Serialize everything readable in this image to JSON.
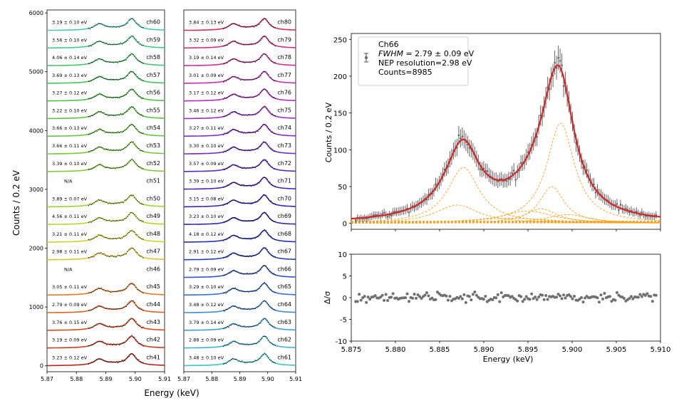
{
  "chart_data": [
    {
      "type": "line",
      "panel": "ch41-ch60 stacked spectra",
      "xlabel": "Energy  (keV)",
      "ylabel": "Counts / 0.2 eV",
      "xlim": [
        5.87,
        5.91
      ],
      "ylim": [
        -100,
        6050
      ],
      "xticks": [
        "5.87",
        "5.88",
        "5.89",
        "5.90",
        "5.91"
      ],
      "yticks": [
        0,
        1000,
        2000,
        3000,
        4000,
        5000,
        6000
      ],
      "channels": [
        {
          "name": "ch41",
          "offset": 0,
          "fwhm": "3.23 ± 0.12 eV",
          "color": "#b22a1a"
        },
        {
          "name": "ch42",
          "offset": 300,
          "fwhm": "3.19 ± 0.09 eV",
          "color": "#c73d1c"
        },
        {
          "name": "ch43",
          "offset": 600,
          "fwhm": "3.76 ± 0.15 eV",
          "color": "#d34f1f"
        },
        {
          "name": "ch44",
          "offset": 900,
          "fwhm": "2.79 ± 0.09 eV",
          "color": "#dd6322"
        },
        {
          "name": "ch45",
          "offset": 1200,
          "fwhm": "3.05 ± 0.11 eV",
          "color": "#e87a27"
        },
        {
          "name": "ch46",
          "offset": 1500,
          "fwhm": "N/A",
          "color": "#e89a2d"
        },
        {
          "name": "ch47",
          "offset": 1800,
          "fwhm": "2.98 ± 0.11 eV",
          "color": "#d8c72e"
        },
        {
          "name": "ch48",
          "offset": 2100,
          "fwhm": "3.21 ± 0.11 eV",
          "color": "#c8d42c"
        },
        {
          "name": "ch49",
          "offset": 2400,
          "fwhm": "4.56 ± 0.11 eV",
          "color": "#b4d62c"
        },
        {
          "name": "ch50",
          "offset": 2700,
          "fwhm": "3.89 ± 0.07 eV",
          "color": "#9dd42e"
        },
        {
          "name": "ch51",
          "offset": 3000,
          "fwhm": "N/A",
          "color": "#8fd133"
        },
        {
          "name": "ch52",
          "offset": 3300,
          "fwhm": "3.39 ± 0.10 eV",
          "color": "#80cc36"
        },
        {
          "name": "ch53",
          "offset": 3600,
          "fwhm": "3.66 ± 0.11 eV",
          "color": "#73c93a"
        },
        {
          "name": "ch54",
          "offset": 3900,
          "fwhm": "3.66 ± 0.13 eV",
          "color": "#66c63f"
        },
        {
          "name": "ch55",
          "offset": 4200,
          "fwhm": "3.22 ± 0.10 eV",
          "color": "#5bc442"
        },
        {
          "name": "ch56",
          "offset": 4500,
          "fwhm": "3.27 ± 0.12 eV",
          "color": "#50c247"
        },
        {
          "name": "ch57",
          "offset": 4800,
          "fwhm": "3.69 ± 0.13 eV",
          "color": "#49c35a"
        },
        {
          "name": "ch58",
          "offset": 5100,
          "fwhm": "4.06 ± 0.14 eV",
          "color": "#48c470"
        },
        {
          "name": "ch59",
          "offset": 5400,
          "fwhm": "3.56 ± 0.10 eV",
          "color": "#48c78a"
        },
        {
          "name": "ch60",
          "offset": 5700,
          "fwhm": "3.19 ± 0.10 eV",
          "color": "#4ccaa8"
        }
      ]
    },
    {
      "type": "line",
      "panel": "ch61-ch80 stacked spectra",
      "xlabel": "Energy  (keV)",
      "xlim": [
        5.87,
        5.91
      ],
      "ylim": [
        -100,
        6050
      ],
      "xticks": [
        "5.87",
        "5.88",
        "5.89",
        "5.90",
        "5.91"
      ],
      "channels": [
        {
          "name": "ch61",
          "offset": 0,
          "fwhm": "3.48 ± 0.10 eV",
          "color": "#3cc3c8"
        },
        {
          "name": "ch62",
          "offset": 300,
          "fwhm": "2.88 ± 0.09 eV",
          "color": "#3eb3d4"
        },
        {
          "name": "ch63",
          "offset": 600,
          "fwhm": "3.79 ± 0.14 eV",
          "color": "#3fa0d8"
        },
        {
          "name": "ch64",
          "offset": 900,
          "fwhm": "3.48 ± 0.12 eV",
          "color": "#3d8ad8"
        },
        {
          "name": "ch65",
          "offset": 1200,
          "fwhm": "3.29 ± 0.10 eV",
          "color": "#3770d2"
        },
        {
          "name": "ch66",
          "offset": 1500,
          "fwhm": "2.79 ± 0.09 eV",
          "color": "#2f55c7"
        },
        {
          "name": "ch67",
          "offset": 1800,
          "fwhm": "2.91 ± 0.12 eV",
          "color": "#2840c0"
        },
        {
          "name": "ch68",
          "offset": 2100,
          "fwhm": "4.18 ± 0.12 eV",
          "color": "#2530b8"
        },
        {
          "name": "ch69",
          "offset": 2400,
          "fwhm": "3.23 ± 0.10 eV",
          "color": "#2c28b4"
        },
        {
          "name": "ch70",
          "offset": 2700,
          "fwhm": "3.15 ± 0.08 eV",
          "color": "#3a26b8"
        },
        {
          "name": "ch71",
          "offset": 3000,
          "fwhm": "3.39 ± 0.10 eV",
          "color": "#4a26bd"
        },
        {
          "name": "ch72",
          "offset": 3300,
          "fwhm": "3.57 ± 0.09 eV",
          "color": "#5d28c2"
        },
        {
          "name": "ch73",
          "offset": 3600,
          "fwhm": "3.30 ± 0.10 eV",
          "color": "#712ac4"
        },
        {
          "name": "ch74",
          "offset": 3900,
          "fwhm": "3.27 ± 0.11 eV",
          "color": "#872cc5"
        },
        {
          "name": "ch75",
          "offset": 4200,
          "fwhm": "3.46 ± 0.12 eV",
          "color": "#9e2ec4"
        },
        {
          "name": "ch76",
          "offset": 4500,
          "fwhm": "3.17 ± 0.12 eV",
          "color": "#b42fbd"
        },
        {
          "name": "ch77",
          "offset": 4800,
          "fwhm": "3.01 ± 0.09 eV",
          "color": "#c52fae"
        },
        {
          "name": "ch78",
          "offset": 5100,
          "fwhm": "3.19 ± 0.14 eV",
          "color": "#d02e97"
        },
        {
          "name": "ch79",
          "offset": 5400,
          "fwhm": "3.32 ± 0.09 eV",
          "color": "#d72d7a"
        },
        {
          "name": "ch80",
          "offset": 5700,
          "fwhm": "3.84 ± 0.13 eV",
          "color": "#d92b58"
        }
      ]
    },
    {
      "type": "line",
      "panel": "Ch66 fit",
      "ylabel": "Counts / 0.2 eV",
      "xlim": [
        5.875,
        5.91
      ],
      "ylim": [
        -8,
        258
      ],
      "yticks": [
        0,
        50,
        100,
        150,
        200,
        250
      ],
      "legend": {
        "placement": "top-left",
        "title": "Ch66",
        "fwhm_label": "FWHM",
        "fwhm_value": " = 2.79 ± 0.09 eV",
        "nep": "NEP resolution=2.98 eV",
        "counts": "Counts=8985"
      },
      "series": [
        {
          "name": "data",
          "x_range": [
            5.8755,
            5.9095
          ],
          "peaks": [
            {
              "x": 5.8877,
              "y": 103
            },
            {
              "x": 5.8987,
              "y": 206
            }
          ],
          "valley": {
            "x": 5.892,
            "y": 33
          }
        },
        {
          "name": "fit",
          "color": "#d62728",
          "peaks": [
            {
              "x": 5.8877,
              "y": 103
            },
            {
              "x": 5.8987,
              "y": 206
            }
          ]
        },
        {
          "name": "components",
          "color": "#ff9f1a",
          "peaks": [
            {
              "x": 5.8877,
              "y": 76
            },
            {
              "x": 5.887,
              "y": 25
            },
            {
              "x": 5.8987,
              "y": 136
            },
            {
              "x": 5.8977,
              "y": 50
            },
            {
              "x": 5.8965,
              "y": 20
            },
            {
              "x": 5.895,
              "y": 17
            },
            {
              "x": 5.8995,
              "y": 12
            }
          ]
        }
      ]
    },
    {
      "type": "scatter",
      "panel": "Ch66 residuals",
      "xlabel": "Energy  (keV)",
      "ylabel": "Δ/σ",
      "xlim": [
        5.875,
        5.91
      ],
      "ylim": [
        -10,
        10
      ],
      "xticks": [
        "5.875",
        "5.880",
        "5.885",
        "5.890",
        "5.895",
        "5.900",
        "5.905",
        "5.910"
      ],
      "yticks": [
        -10,
        -5,
        0,
        5,
        10
      ],
      "point_count": 170,
      "color": "#707070"
    }
  ]
}
